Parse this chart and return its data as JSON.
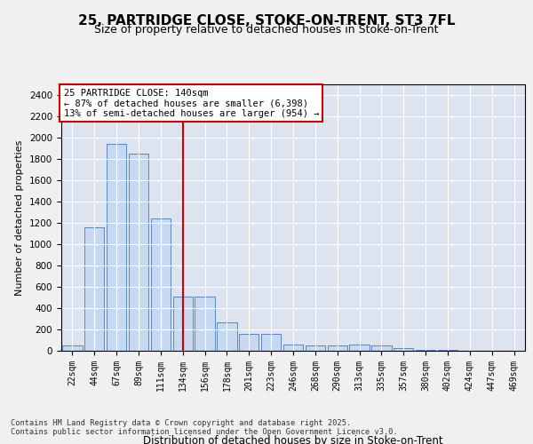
{
  "title_line1": "25, PARTRIDGE CLOSE, STOKE-ON-TRENT, ST3 7FL",
  "title_line2": "Size of property relative to detached houses in Stoke-on-Trent",
  "xlabel": "Distribution of detached houses by size in Stoke-on-Trent",
  "ylabel": "Number of detached properties",
  "categories": [
    "22sqm",
    "44sqm",
    "67sqm",
    "89sqm",
    "111sqm",
    "134sqm",
    "156sqm",
    "178sqm",
    "201sqm",
    "223sqm",
    "246sqm",
    "268sqm",
    "290sqm",
    "313sqm",
    "335sqm",
    "357sqm",
    "380sqm",
    "402sqm",
    "424sqm",
    "447sqm",
    "469sqm"
  ],
  "values": [
    50,
    1160,
    1940,
    1850,
    1240,
    510,
    510,
    265,
    160,
    160,
    55,
    50,
    50,
    55,
    50,
    28,
    10,
    5,
    3,
    3,
    2
  ],
  "bar_color": "#c6d9f0",
  "bar_edge_color": "#5a86c5",
  "marker_index": 5,
  "marker_color": "#cc0000",
  "annotation_text": "25 PARTRIDGE CLOSE: 140sqm\n← 87% of detached houses are smaller (6,398)\n13% of semi-detached houses are larger (954) →",
  "annotation_box_color": "#ffffff",
  "annotation_box_edge": "#cc0000",
  "background_color": "#dde4ef",
  "grid_color": "#ffffff",
  "footer_line1": "Contains HM Land Registry data © Crown copyright and database right 2025.",
  "footer_line2": "Contains public sector information licensed under the Open Government Licence v3.0.",
  "ylim": [
    0,
    2500
  ],
  "yticks": [
    0,
    200,
    400,
    600,
    800,
    1000,
    1200,
    1400,
    1600,
    1800,
    2000,
    2200,
    2400
  ]
}
